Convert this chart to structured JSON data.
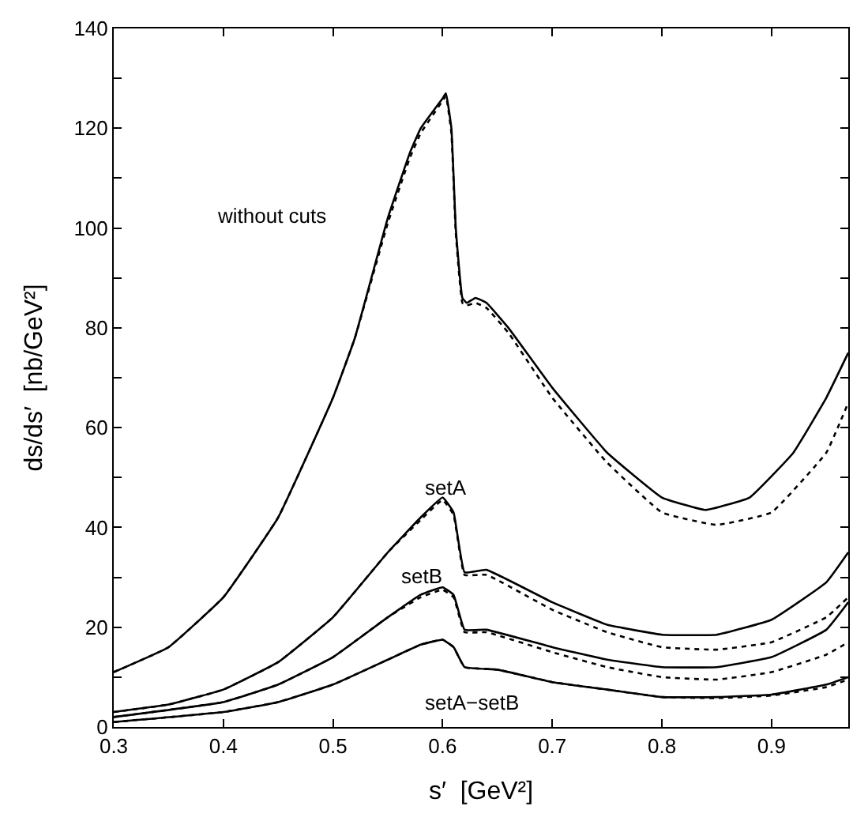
{
  "chart_data": {
    "type": "line",
    "xlabel": "s′  [GeV²]",
    "ylabel": "ds/ds′  [nb/GeV²]",
    "xlim": [
      0.3,
      0.97
    ],
    "xticks": [
      0.3,
      0.4,
      0.5,
      0.6,
      0.7,
      0.8,
      0.9
    ],
    "ylim": [
      0,
      140
    ],
    "yticks": [
      0,
      {
        "value": 10,
        "label": null
      },
      20,
      {
        "value": 30,
        "label": null
      },
      40,
      {
        "value": 50,
        "label": null
      },
      60,
      {
        "value": 70,
        "label": null
      },
      80,
      {
        "value": 90,
        "label": null
      },
      100,
      {
        "value": 110,
        "label": null
      },
      120,
      {
        "value": 130,
        "label": null
      },
      140
    ],
    "marker": "none",
    "series": [
      {
        "color": "#000000",
        "line_style": "solid",
        "x": [
          0.3,
          0.35,
          0.4,
          0.45,
          0.5,
          0.52,
          0.55,
          0.57,
          0.58,
          0.6,
          0.603,
          0.608,
          0.612,
          0.618,
          0.622,
          0.63,
          0.64,
          0.66,
          0.7,
          0.75,
          0.8,
          0.84,
          0.88,
          0.92,
          0.95,
          0.97
        ],
        "values": [
          11,
          16,
          26,
          42,
          66,
          78,
          102,
          115,
          120,
          126,
          127,
          120,
          100,
          86,
          85,
          86,
          85,
          80,
          68,
          55,
          46,
          43.5,
          46,
          55,
          66,
          75
        ]
      },
      {
        "color": "#000000",
        "line_style": "dotted",
        "x": [
          0.3,
          0.35,
          0.4,
          0.45,
          0.5,
          0.52,
          0.55,
          0.57,
          0.58,
          0.6,
          0.603,
          0.608,
          0.612,
          0.618,
          0.622,
          0.63,
          0.64,
          0.66,
          0.7,
          0.75,
          0.8,
          0.85,
          0.9,
          0.95,
          0.97
        ],
        "values": [
          11,
          16,
          26,
          42,
          66,
          78,
          101,
          114,
          119,
          125.5,
          126.5,
          119,
          99,
          85,
          84.5,
          85,
          84,
          79,
          66,
          53,
          43,
          40.5,
          43,
          55,
          65
        ]
      },
      {
        "color": "#000000",
        "line_style": "solid",
        "x": [
          0.3,
          0.35,
          0.4,
          0.45,
          0.5,
          0.55,
          0.58,
          0.6,
          0.61,
          0.62,
          0.64,
          0.7,
          0.75,
          0.8,
          0.85,
          0.9,
          0.95,
          0.97
        ],
        "values": [
          3,
          4.5,
          7.5,
          13,
          22,
          35,
          42,
          46,
          43,
          31,
          31.5,
          25,
          20.5,
          18.5,
          18.5,
          21.5,
          29,
          35
        ]
      },
      {
        "color": "#000000",
        "line_style": "dotted",
        "x": [
          0.3,
          0.35,
          0.4,
          0.45,
          0.5,
          0.55,
          0.58,
          0.6,
          0.61,
          0.62,
          0.64,
          0.7,
          0.75,
          0.8,
          0.85,
          0.9,
          0.95,
          0.97
        ],
        "values": [
          3,
          4.5,
          7.5,
          13,
          22,
          35,
          41.5,
          45.5,
          42.5,
          30.5,
          30.5,
          23.5,
          19,
          16,
          15.5,
          17,
          22,
          26
        ]
      },
      {
        "color": "#000000",
        "line_style": "solid",
        "x": [
          0.3,
          0.4,
          0.45,
          0.5,
          0.55,
          0.58,
          0.6,
          0.61,
          0.62,
          0.64,
          0.7,
          0.75,
          0.8,
          0.85,
          0.9,
          0.95,
          0.97
        ],
        "values": [
          2,
          5,
          8.5,
          14,
          22,
          26.5,
          28,
          26.5,
          19.5,
          19.5,
          16,
          13.5,
          12,
          12,
          14,
          19.5,
          25
        ]
      },
      {
        "color": "#000000",
        "line_style": "dotted",
        "x": [
          0.3,
          0.4,
          0.45,
          0.5,
          0.55,
          0.58,
          0.6,
          0.61,
          0.62,
          0.64,
          0.7,
          0.75,
          0.8,
          0.85,
          0.9,
          0.95,
          0.97
        ],
        "values": [
          2,
          5,
          8.5,
          14,
          22,
          26,
          27.5,
          26,
          19,
          19,
          15,
          12,
          10,
          9.5,
          11,
          14.5,
          17
        ]
      },
      {
        "color": "#000000",
        "line_style": "solid",
        "x": [
          0.3,
          0.4,
          0.45,
          0.5,
          0.55,
          0.58,
          0.6,
          0.61,
          0.62,
          0.65,
          0.7,
          0.75,
          0.8,
          0.85,
          0.9,
          0.95,
          0.97
        ],
        "values": [
          1,
          3,
          5,
          8.5,
          13.5,
          16.5,
          17.5,
          16,
          12,
          11.5,
          9,
          7.5,
          6,
          6,
          6.5,
          8.5,
          10
        ]
      },
      {
        "color": "#000000",
        "line_style": "dotted",
        "x": [
          0.3,
          0.4,
          0.45,
          0.5,
          0.55,
          0.58,
          0.6,
          0.61,
          0.62,
          0.65,
          0.7,
          0.75,
          0.8,
          0.85,
          0.9,
          0.95,
          0.97
        ],
        "values": [
          1,
          3,
          5,
          8.5,
          13.5,
          16.5,
          17.5,
          16,
          12,
          11.5,
          9,
          7.5,
          6,
          5.8,
          6.3,
          8,
          9.5
        ]
      }
    ],
    "annotations": [
      "without cuts",
      "setA",
      "setB",
      "setA−setB"
    ]
  }
}
